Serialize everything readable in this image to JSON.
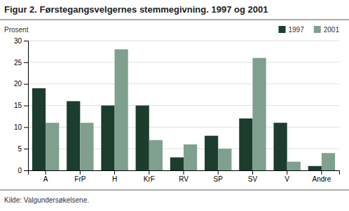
{
  "chart_data": {
    "type": "bar",
    "title": "Figur 2. Førstegangsvelgernes stemmegivning. 1997 og 2001",
    "ylabel": "Prosent",
    "source": "Kilde: Valgundersøkelsene.",
    "categories": [
      "A",
      "FrP",
      "H",
      "KrF",
      "RV",
      "SP",
      "SV",
      "V",
      "Andre"
    ],
    "series": [
      {
        "name": "1997",
        "color": "#1c3d2e",
        "values": [
          19,
          16,
          15,
          15,
          3,
          8,
          12,
          11,
          1
        ]
      },
      {
        "name": "2001",
        "color": "#7fa08f",
        "values": [
          11,
          11,
          28,
          7,
          6,
          5,
          26,
          2,
          4
        ]
      }
    ],
    "ylim": [
      0,
      30
    ],
    "yticks": [
      0,
      5,
      10,
      15,
      20,
      25,
      30
    ],
    "grid": true,
    "legend": "upper right"
  }
}
